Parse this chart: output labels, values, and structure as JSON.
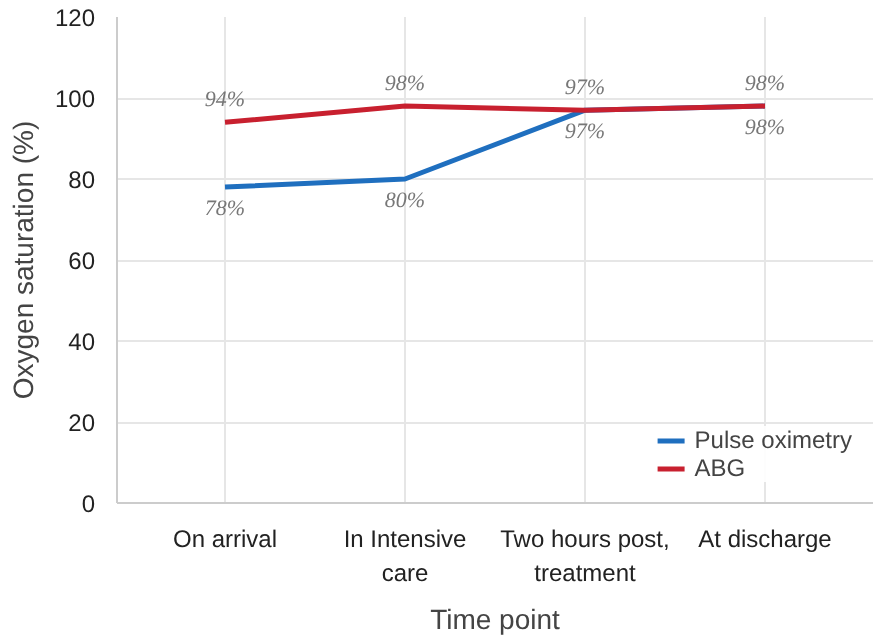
{
  "chart_data": {
    "type": "line",
    "xlabel": "Time point",
    "ylabel": "Oxygen saturation (%)",
    "categories": [
      "On arrival",
      "In Intensive care",
      "Two hours post, treatment",
      "At discharge"
    ],
    "series": [
      {
        "name": "Pulse oximetry",
        "color": "#1f6fbf",
        "values": [
          78,
          80,
          97,
          98
        ],
        "value_labels": [
          "78%",
          "80%",
          "97%",
          "98%"
        ]
      },
      {
        "name": "ABG",
        "color": "#c8202f",
        "values": [
          94,
          98,
          97,
          98
        ],
        "value_labels": [
          "94%",
          "98%",
          "97%",
          "98%"
        ]
      }
    ],
    "ylim": [
      0,
      120
    ],
    "yticks": [
      0,
      20,
      40,
      60,
      80,
      100,
      120
    ],
    "grid": true,
    "legend": "bottom right",
    "marker": "none",
    "line_style": "solid"
  }
}
